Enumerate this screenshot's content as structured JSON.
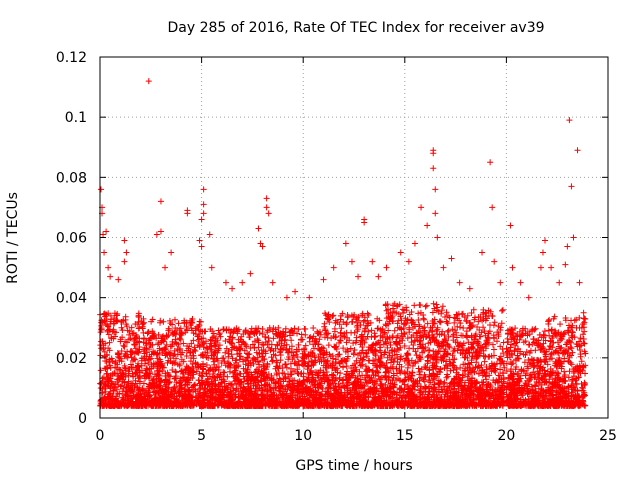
{
  "chart_data": {
    "type": "scatter",
    "title": "Day 285 of 2016, Rate Of TEC Index for receiver av39",
    "xlabel": "GPS time / hours",
    "ylabel": "ROTI / TECUs",
    "xlim": [
      0,
      25
    ],
    "ylim": [
      0,
      0.12
    ],
    "xticks": [
      0,
      5,
      10,
      15,
      20,
      25
    ],
    "yticks": [
      0,
      0.02,
      0.04,
      0.06,
      0.08,
      0.1,
      0.12
    ],
    "xtick_labels": [
      "0",
      "5",
      "10",
      "15",
      "20",
      "25"
    ],
    "ytick_labels": [
      "0",
      "0.02",
      "0.04",
      "0.06",
      "0.08",
      "0.1",
      "0.12"
    ],
    "grid": true,
    "marker": "+",
    "color": "#ff0000",
    "data_range_hours": [
      0,
      23.9
    ],
    "data_gap_hours": [
      19.9,
      20.0
    ],
    "series": [
      {
        "name": "ROTI",
        "points": [
          [
            0.05,
            0.076
          ],
          [
            0.1,
            0.07
          ],
          [
            0.1,
            0.068
          ],
          [
            0.15,
            0.061
          ],
          [
            0.2,
            0.055
          ],
          [
            0.3,
            0.062
          ],
          [
            0.4,
            0.05
          ],
          [
            0.5,
            0.047
          ],
          [
            0.9,
            0.046
          ],
          [
            1.2,
            0.059
          ],
          [
            1.3,
            0.055
          ],
          [
            1.2,
            0.052
          ],
          [
            2.4,
            0.112
          ],
          [
            2.8,
            0.061
          ],
          [
            3.0,
            0.072
          ],
          [
            3.0,
            0.062
          ],
          [
            3.2,
            0.05
          ],
          [
            3.5,
            0.055
          ],
          [
            4.3,
            0.069
          ],
          [
            4.3,
            0.068
          ],
          [
            4.9,
            0.059
          ],
          [
            5.0,
            0.057
          ],
          [
            5.0,
            0.066
          ],
          [
            5.1,
            0.071
          ],
          [
            5.1,
            0.068
          ],
          [
            5.1,
            0.076
          ],
          [
            5.4,
            0.061
          ],
          [
            5.5,
            0.05
          ],
          [
            6.2,
            0.045
          ],
          [
            6.5,
            0.043
          ],
          [
            7.0,
            0.045
          ],
          [
            7.4,
            0.048
          ],
          [
            7.8,
            0.063
          ],
          [
            7.9,
            0.058
          ],
          [
            8.0,
            0.057
          ],
          [
            8.2,
            0.073
          ],
          [
            8.2,
            0.07
          ],
          [
            8.3,
            0.068
          ],
          [
            8.5,
            0.045
          ],
          [
            9.2,
            0.04
          ],
          [
            9.6,
            0.042
          ],
          [
            10.3,
            0.04
          ],
          [
            11.0,
            0.046
          ],
          [
            11.5,
            0.05
          ],
          [
            12.1,
            0.058
          ],
          [
            12.4,
            0.052
          ],
          [
            12.7,
            0.047
          ],
          [
            13.0,
            0.066
          ],
          [
            13.0,
            0.065
          ],
          [
            13.4,
            0.052
          ],
          [
            13.7,
            0.047
          ],
          [
            14.1,
            0.05
          ],
          [
            14.8,
            0.055
          ],
          [
            15.2,
            0.052
          ],
          [
            15.5,
            0.058
          ],
          [
            15.8,
            0.07
          ],
          [
            16.1,
            0.064
          ],
          [
            16.4,
            0.089
          ],
          [
            16.4,
            0.088
          ],
          [
            16.4,
            0.083
          ],
          [
            16.5,
            0.076
          ],
          [
            16.5,
            0.068
          ],
          [
            16.6,
            0.06
          ],
          [
            16.9,
            0.05
          ],
          [
            17.3,
            0.053
          ],
          [
            17.7,
            0.045
          ],
          [
            18.2,
            0.043
          ],
          [
            18.8,
            0.055
          ],
          [
            19.2,
            0.085
          ],
          [
            19.3,
            0.07
          ],
          [
            19.4,
            0.052
          ],
          [
            19.7,
            0.045
          ],
          [
            20.2,
            0.064
          ],
          [
            20.3,
            0.05
          ],
          [
            20.7,
            0.045
          ],
          [
            21.1,
            0.04
          ],
          [
            21.7,
            0.05
          ],
          [
            21.8,
            0.055
          ],
          [
            21.9,
            0.059
          ],
          [
            22.2,
            0.05
          ],
          [
            22.6,
            0.045
          ],
          [
            22.9,
            0.051
          ],
          [
            23.0,
            0.057
          ],
          [
            23.1,
            0.099
          ],
          [
            23.2,
            0.077
          ],
          [
            23.3,
            0.06
          ],
          [
            23.5,
            0.089
          ],
          [
            23.6,
            0.045
          ],
          [
            23.8,
            0.035
          ]
        ],
        "bulk_envelope": [
          {
            "x_range": [
              0.0,
              2.0
            ],
            "y_range": [
              0.004,
              0.035
            ]
          },
          {
            "x_range": [
              2.0,
              5.0
            ],
            "y_range": [
              0.004,
              0.033
            ]
          },
          {
            "x_range": [
              5.0,
              8.0
            ],
            "y_range": [
              0.004,
              0.03
            ]
          },
          {
            "x_range": [
              8.0,
              11.0
            ],
            "y_range": [
              0.004,
              0.03
            ]
          },
          {
            "x_range": [
              11.0,
              14.0
            ],
            "y_range": [
              0.004,
              0.035
            ]
          },
          {
            "x_range": [
              14.0,
              17.0
            ],
            "y_range": [
              0.004,
              0.038
            ]
          },
          {
            "x_range": [
              17.0,
              19.9
            ],
            "y_range": [
              0.004,
              0.036
            ]
          },
          {
            "x_range": [
              20.0,
              22.0
            ],
            "y_range": [
              0.004,
              0.03
            ]
          },
          {
            "x_range": [
              22.0,
              23.9
            ],
            "y_range": [
              0.004,
              0.034
            ]
          }
        ]
      }
    ]
  }
}
